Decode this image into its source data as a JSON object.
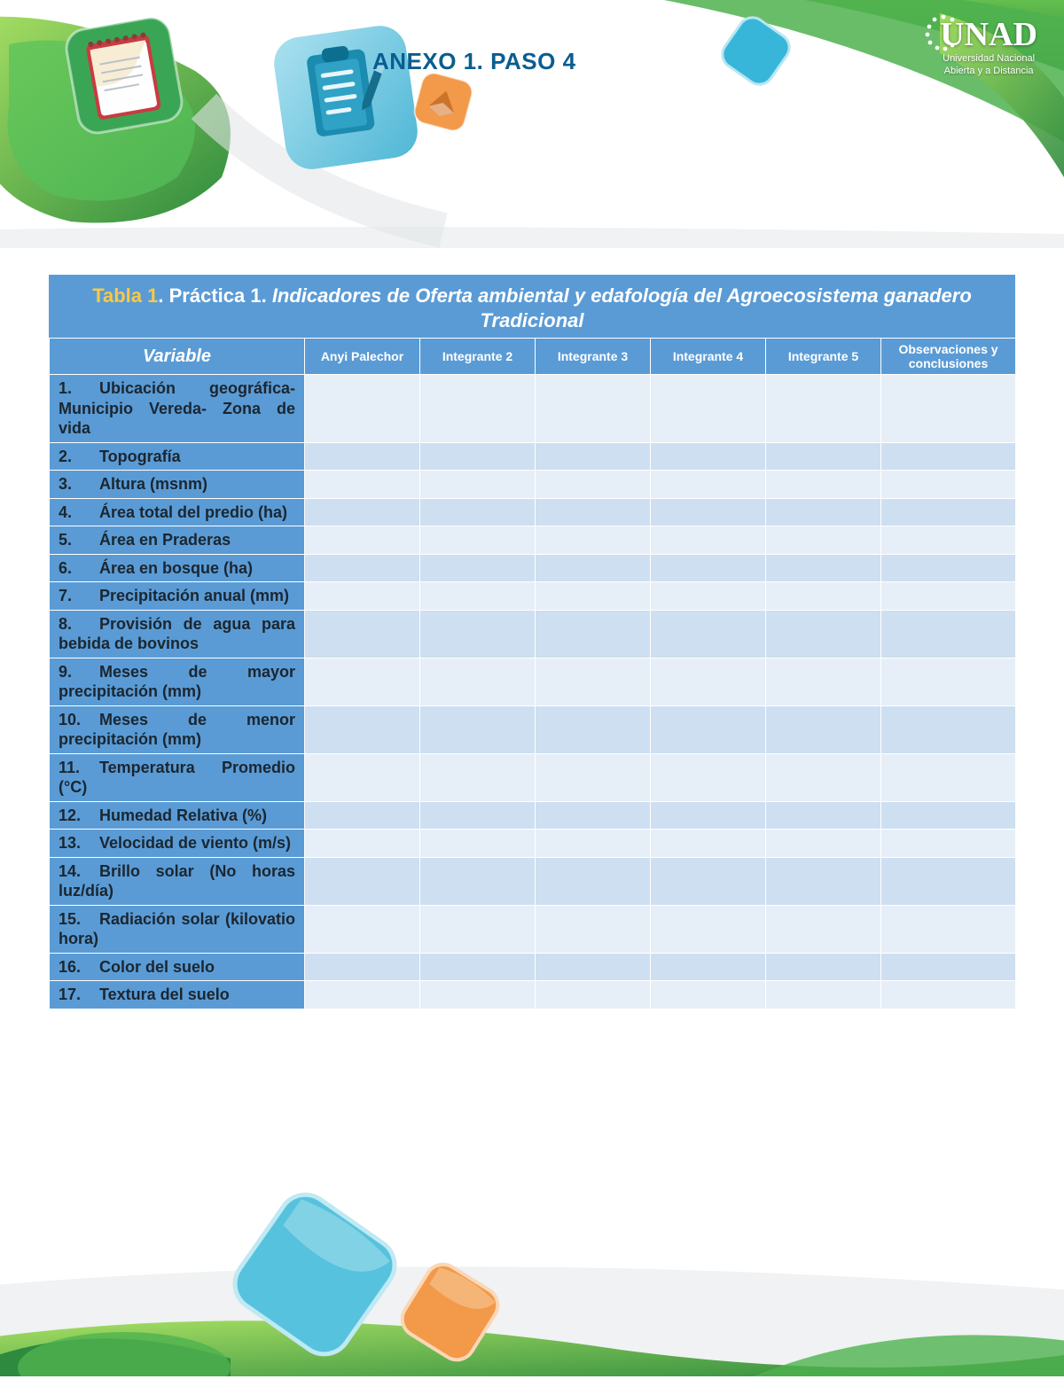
{
  "header": {
    "title": "ANEXO 1. PASO 4",
    "logo_main": "UNAD",
    "logo_sub1": "Universidad Nacional",
    "logo_sub2": "Abierta y a Distancia"
  },
  "table": {
    "title_tabla": "Tabla 1",
    "title_practica": ". Práctica 1. ",
    "title_rest": "Indicadores de Oferta ambiental y edafología del  Agroecosistema ganadero Tradicional",
    "columns": {
      "variable": "Variable",
      "c1": "Anyi Palechor",
      "c2": "Integrante 2",
      "c3": "Integrante 3",
      "c4": "Integrante 4",
      "c5": "Integrante 5",
      "obs": "Observaciones y conclusiones"
    },
    "rows": [
      {
        "n": "1.",
        "label": "Ubicación geográfica- Municipio Vereda- Zona de vida"
      },
      {
        "n": "2.",
        "label": "Topografía"
      },
      {
        "n": "3.",
        "label": "Altura (msnm)"
      },
      {
        "n": "4.",
        "label": "Área total del predio (ha)"
      },
      {
        "n": "5.",
        "label": "Área en Praderas"
      },
      {
        "n": "6.",
        "label": "Área en bosque (ha)"
      },
      {
        "n": "7.",
        "label": "Precipitación anual (mm)"
      },
      {
        "n": "8.",
        "label": "Provisión de agua para bebida de bovinos"
      },
      {
        "n": "9.",
        "label": "Meses de mayor precipitación (mm)"
      },
      {
        "n": "10.",
        "label": "Meses de menor precipitación (mm)"
      },
      {
        "n": "11.",
        "label": "Temperatura Promedio (°C)"
      },
      {
        "n": "12.",
        "label": "Humedad Relativa (%)"
      },
      {
        "n": "13.",
        "label": "Velocidad de viento (m/s)"
      },
      {
        "n": "14.",
        "label": "Brillo solar (No horas luz/día)"
      },
      {
        "n": "15.",
        "label": "Radiación solar (kilovatio hora)"
      },
      {
        "n": "16.",
        "label": "Color del suelo"
      },
      {
        "n": "17.",
        "label": "Textura del suelo"
      }
    ]
  },
  "style": {
    "header_blue": "#5a9bd5",
    "row_light": "#e6eff8",
    "row_dark": "#cddff0",
    "accent_yellow": "#f7c948",
    "green_dark": "#2d8a3e",
    "green_light": "#8fd14f",
    "teal": "#38b6d9",
    "orange": "#f2994a",
    "background": "#ffffff"
  }
}
